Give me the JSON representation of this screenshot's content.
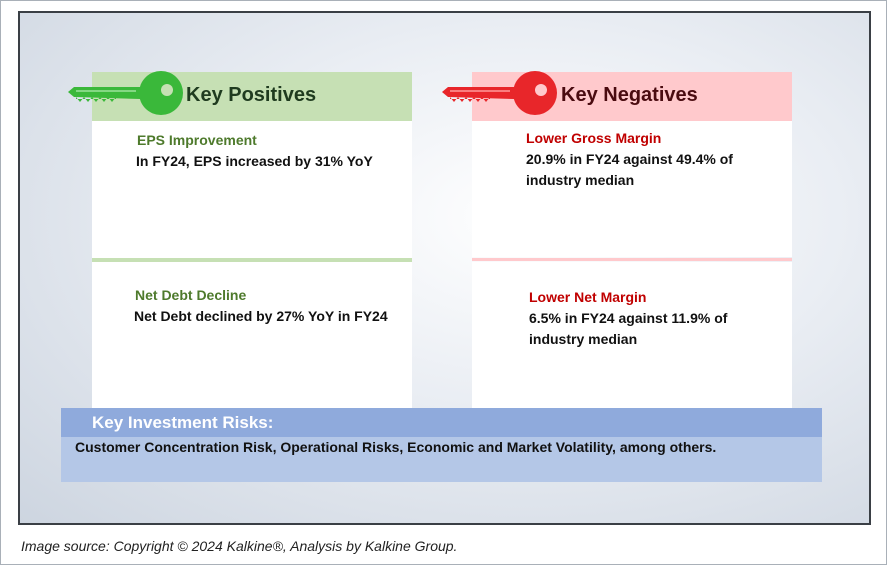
{
  "positives": {
    "header": "Key Positives",
    "items": [
      {
        "title": "EPS Improvement",
        "body": "In FY24, EPS increased by 31% YoY"
      },
      {
        "title": "Net Debt Decline",
        "body": "Net Debt declined by 27% YoY in FY24"
      }
    ]
  },
  "negatives": {
    "header": "Key Negatives",
    "items": [
      {
        "title": "Lower Gross Margin",
        "body_lines": [
          "20.9% in FY24 against 49.4% of",
          "industry median"
        ]
      },
      {
        "title": "Lower Net Margin",
        "body_lines": [
          "6.5% in FY24 against 11.9% of",
          "industry median"
        ]
      }
    ]
  },
  "risks": {
    "title": "Key Investment Risks:",
    "body": "Customer Concentration Risk, Operational Risks, Economic and Market Volatility,  among others."
  },
  "caption": "Image source: Copyright © 2024 Kalkine®, Analysis by Kalkine Group.",
  "colors": {
    "positive_header_bg": "#c6e0b4",
    "negative_header_bg": "#ffc9cc",
    "positive_title": "#4e7a2c",
    "negative_title": "#c00000",
    "risk_bar": "#8faadc",
    "risk_bg": "#b4c7e7",
    "green_key": "#3ab83a",
    "red_key": "#e8262a"
  },
  "icons": {
    "positive": "green-key-icon",
    "negative": "red-key-icon"
  }
}
